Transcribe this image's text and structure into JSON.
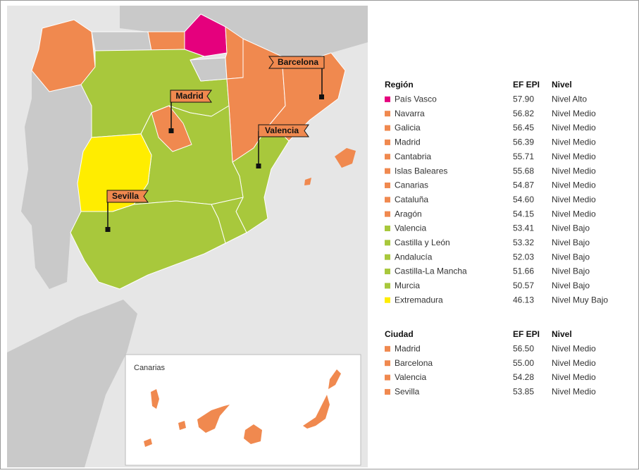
{
  "map": {
    "flags": [
      "Barcelona",
      "Madrid",
      "Valencia",
      "Sevilla"
    ],
    "inset_title": "Canarias"
  },
  "regions": {
    "header": [
      "Región",
      "EF EPI",
      "Nivel"
    ],
    "rows": [
      {
        "name": "País Vasco",
        "score": "57.90",
        "level": "Nivel Alto",
        "color": "#e5007d"
      },
      {
        "name": "Navarra",
        "score": "56.82",
        "level": "Nivel Medio",
        "color": "#f0894f"
      },
      {
        "name": "Galicia",
        "score": "56.45",
        "level": "Nivel Medio",
        "color": "#f0894f"
      },
      {
        "name": "Madrid",
        "score": "56.39",
        "level": "Nivel Medio",
        "color": "#f0894f"
      },
      {
        "name": "Cantabria",
        "score": "55.71",
        "level": "Nivel Medio",
        "color": "#f0894f"
      },
      {
        "name": "Islas Baleares",
        "score": "55.68",
        "level": "Nivel Medio",
        "color": "#f0894f"
      },
      {
        "name": "Canarias",
        "score": "54.87",
        "level": "Nivel Medio",
        "color": "#f0894f"
      },
      {
        "name": "Cataluña",
        "score": "54.60",
        "level": "Nivel Medio",
        "color": "#f0894f"
      },
      {
        "name": "Aragón",
        "score": "54.15",
        "level": "Nivel Medio",
        "color": "#f0894f"
      },
      {
        "name": "Valencia",
        "score": "53.41",
        "level": "Nivel Bajo",
        "color": "#a8c83c"
      },
      {
        "name": "Castilla y León",
        "score": "53.32",
        "level": "Nivel Bajo",
        "color": "#a8c83c"
      },
      {
        "name": "Andalucía",
        "score": "52.03",
        "level": "Nivel Bajo",
        "color": "#a8c83c"
      },
      {
        "name": "Castilla-La Mancha",
        "score": "51.66",
        "level": "Nivel Bajo",
        "color": "#a8c83c"
      },
      {
        "name": "Murcia",
        "score": "50.57",
        "level": "Nivel Bajo",
        "color": "#a8c83c"
      },
      {
        "name": "Extremadura",
        "score": "46.13",
        "level": "Nivel Muy Bajo",
        "color": "#ffed00"
      }
    ]
  },
  "cities": {
    "header": [
      "Ciudad",
      "EF EPI",
      "Nivel"
    ],
    "rows": [
      {
        "name": "Madrid",
        "score": "56.50",
        "level": "Nivel Medio",
        "color": "#f0894f"
      },
      {
        "name": "Barcelona",
        "score": "55.00",
        "level": "Nivel Medio",
        "color": "#f0894f"
      },
      {
        "name": "Valencia",
        "score": "54.28",
        "level": "Nivel Medio",
        "color": "#f0894f"
      },
      {
        "name": "Sevilla",
        "score": "53.85",
        "level": "Nivel Medio",
        "color": "#f0894f"
      }
    ]
  }
}
